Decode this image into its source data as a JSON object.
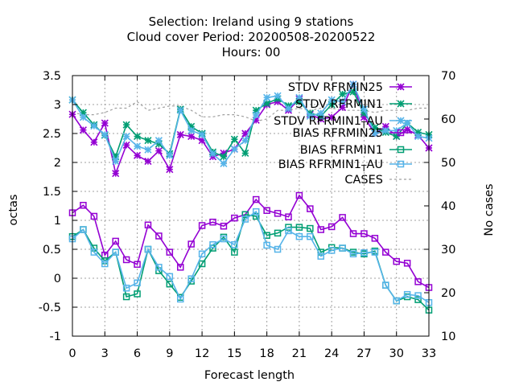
{
  "title_lines": [
    "Selection: Ireland using      9 stations",
    "Cloud cover   Period: 20200508-20200522",
    "Hours:  00"
  ],
  "chart_data": {
    "type": "line",
    "xlabel": "Forecast length",
    "ylabel": "octas",
    "y2label": "No cases",
    "xlim": [
      0,
      33
    ],
    "ylim": [
      -1,
      3.5
    ],
    "y2lim": [
      10,
      70
    ],
    "xticks": [
      "0",
      "3",
      "6",
      "9",
      "12",
      "15",
      "18",
      "21",
      "24",
      "27",
      "30",
      "33"
    ],
    "yticks": [
      "-1",
      "-0.5",
      "0",
      "0.5",
      "1",
      "1.5",
      "2",
      "2.5",
      "3",
      "3.5"
    ],
    "y2ticks": [
      "10",
      "20",
      "30",
      "40",
      "50",
      "60",
      "70"
    ],
    "grid": true,
    "legend_position": "top-right",
    "x": [
      0,
      1,
      2,
      3,
      4,
      5,
      6,
      7,
      8,
      9,
      10,
      11,
      12,
      13,
      14,
      15,
      16,
      17,
      18,
      19,
      20,
      21,
      22,
      23,
      24,
      25,
      26,
      27,
      28,
      29,
      30,
      31,
      32,
      33
    ],
    "series": [
      {
        "name": "STDV RFRMIN25",
        "color": "#9400d3",
        "marker": "star",
        "axis": "y1",
        "values": [
          2.83,
          2.56,
          2.35,
          2.68,
          1.81,
          2.3,
          2.12,
          2.02,
          2.2,
          1.88,
          2.48,
          2.45,
          2.38,
          2.1,
          2.16,
          2.23,
          2.5,
          2.73,
          3.0,
          3.05,
          2.9,
          3.1,
          2.83,
          2.75,
          2.78,
          2.95,
          3.35,
          2.78,
          2.5,
          2.62,
          2.45,
          2.57,
          2.47,
          2.25
        ]
      },
      {
        "name": "STDV RFRMIN1",
        "color": "#009e73",
        "marker": "star",
        "axis": "y1",
        "values": [
          3.08,
          2.86,
          2.65,
          2.47,
          2.1,
          2.65,
          2.45,
          2.38,
          2.32,
          2.15,
          2.92,
          2.62,
          2.5,
          2.18,
          2.1,
          2.4,
          2.16,
          2.9,
          3.02,
          3.1,
          2.98,
          3.05,
          2.85,
          2.8,
          3.0,
          3.18,
          3.22,
          2.85,
          2.6,
          2.52,
          2.45,
          2.68,
          2.52,
          2.48
        ]
      },
      {
        "name": "STDV RFRMIN1_T AU",
        "color": "#56b4e9",
        "marker": "star",
        "axis": "y1",
        "values": [
          3.08,
          2.78,
          2.63,
          2.48,
          2.02,
          2.45,
          2.28,
          2.22,
          2.38,
          2.12,
          2.9,
          2.55,
          2.48,
          2.15,
          1.98,
          2.23,
          2.38,
          2.82,
          3.12,
          3.15,
          2.93,
          3.12,
          2.8,
          2.85,
          3.08,
          3.05,
          3.35,
          2.92,
          2.5,
          2.55,
          2.55,
          2.68,
          2.45,
          2.42
        ]
      },
      {
        "name": "BIAS RFRMIN25",
        "color": "#9400d3",
        "marker": "square",
        "axis": "y1",
        "values": [
          1.13,
          1.26,
          1.07,
          0.4,
          0.64,
          0.32,
          0.24,
          0.92,
          0.73,
          0.45,
          0.19,
          0.59,
          0.91,
          0.97,
          0.9,
          1.04,
          1.1,
          1.36,
          1.17,
          1.12,
          1.06,
          1.43,
          1.2,
          0.84,
          0.89,
          1.05,
          0.77,
          0.77,
          0.69,
          0.45,
          0.29,
          0.26,
          -0.06,
          -0.16
        ]
      },
      {
        "name": "BIAS RFRMIN1",
        "color": "#009e73",
        "marker": "square",
        "axis": "y1",
        "values": [
          0.72,
          0.84,
          0.52,
          0.3,
          0.45,
          -0.32,
          -0.27,
          0.5,
          0.13,
          -0.1,
          -0.33,
          -0.05,
          0.25,
          0.52,
          0.71,
          0.45,
          1.1,
          1.07,
          0.74,
          0.78,
          0.88,
          0.88,
          0.86,
          0.45,
          0.53,
          0.52,
          0.45,
          0.42,
          0.47,
          -0.12,
          -0.39,
          -0.32,
          -0.37,
          -0.55
        ]
      },
      {
        "name": "BIAS RFRMIN1_T AU",
        "color": "#56b4e9",
        "marker": "square",
        "axis": "y1",
        "values": [
          0.68,
          0.84,
          0.45,
          0.25,
          0.45,
          -0.17,
          -0.08,
          0.5,
          0.19,
          0.03,
          -0.36,
          -0.01,
          0.42,
          0.58,
          0.68,
          0.58,
          1.02,
          1.15,
          0.57,
          0.5,
          0.82,
          0.72,
          0.72,
          0.38,
          0.48,
          0.52,
          0.42,
          0.44,
          0.45,
          -0.12,
          -0.39,
          -0.28,
          -0.3,
          -0.42
        ]
      },
      {
        "name": "CASES",
        "color": "#a0a0a0",
        "dash": true,
        "axis": "y2",
        "values": [
          61.5,
          61,
          61,
          61.5,
          62.5,
          62.5,
          64,
          62,
          62.5,
          63,
          63,
          62,
          60.5,
          60.5,
          61,
          61,
          60.5,
          59.5,
          60,
          62,
          62,
          62.5,
          62,
          62.5,
          62.5,
          62,
          62,
          62,
          61.5,
          62,
          62,
          62,
          62.5,
          62.5
        ]
      }
    ]
  },
  "legend_labels": {
    "s0": "STDV RFRMIN25",
    "s1": "STDV RFRMIN1",
    "s2_main": "STDV RFRMIN1",
    "s2_sub": "T",
    "s2_tail": "AU",
    "s3": "BIAS RFRMIN25",
    "s4": "BIAS RFRMIN1",
    "s5_main": "BIAS RFRMIN1",
    "s5_sub": "T",
    "s5_tail": "AU",
    "s6": "CASES"
  }
}
